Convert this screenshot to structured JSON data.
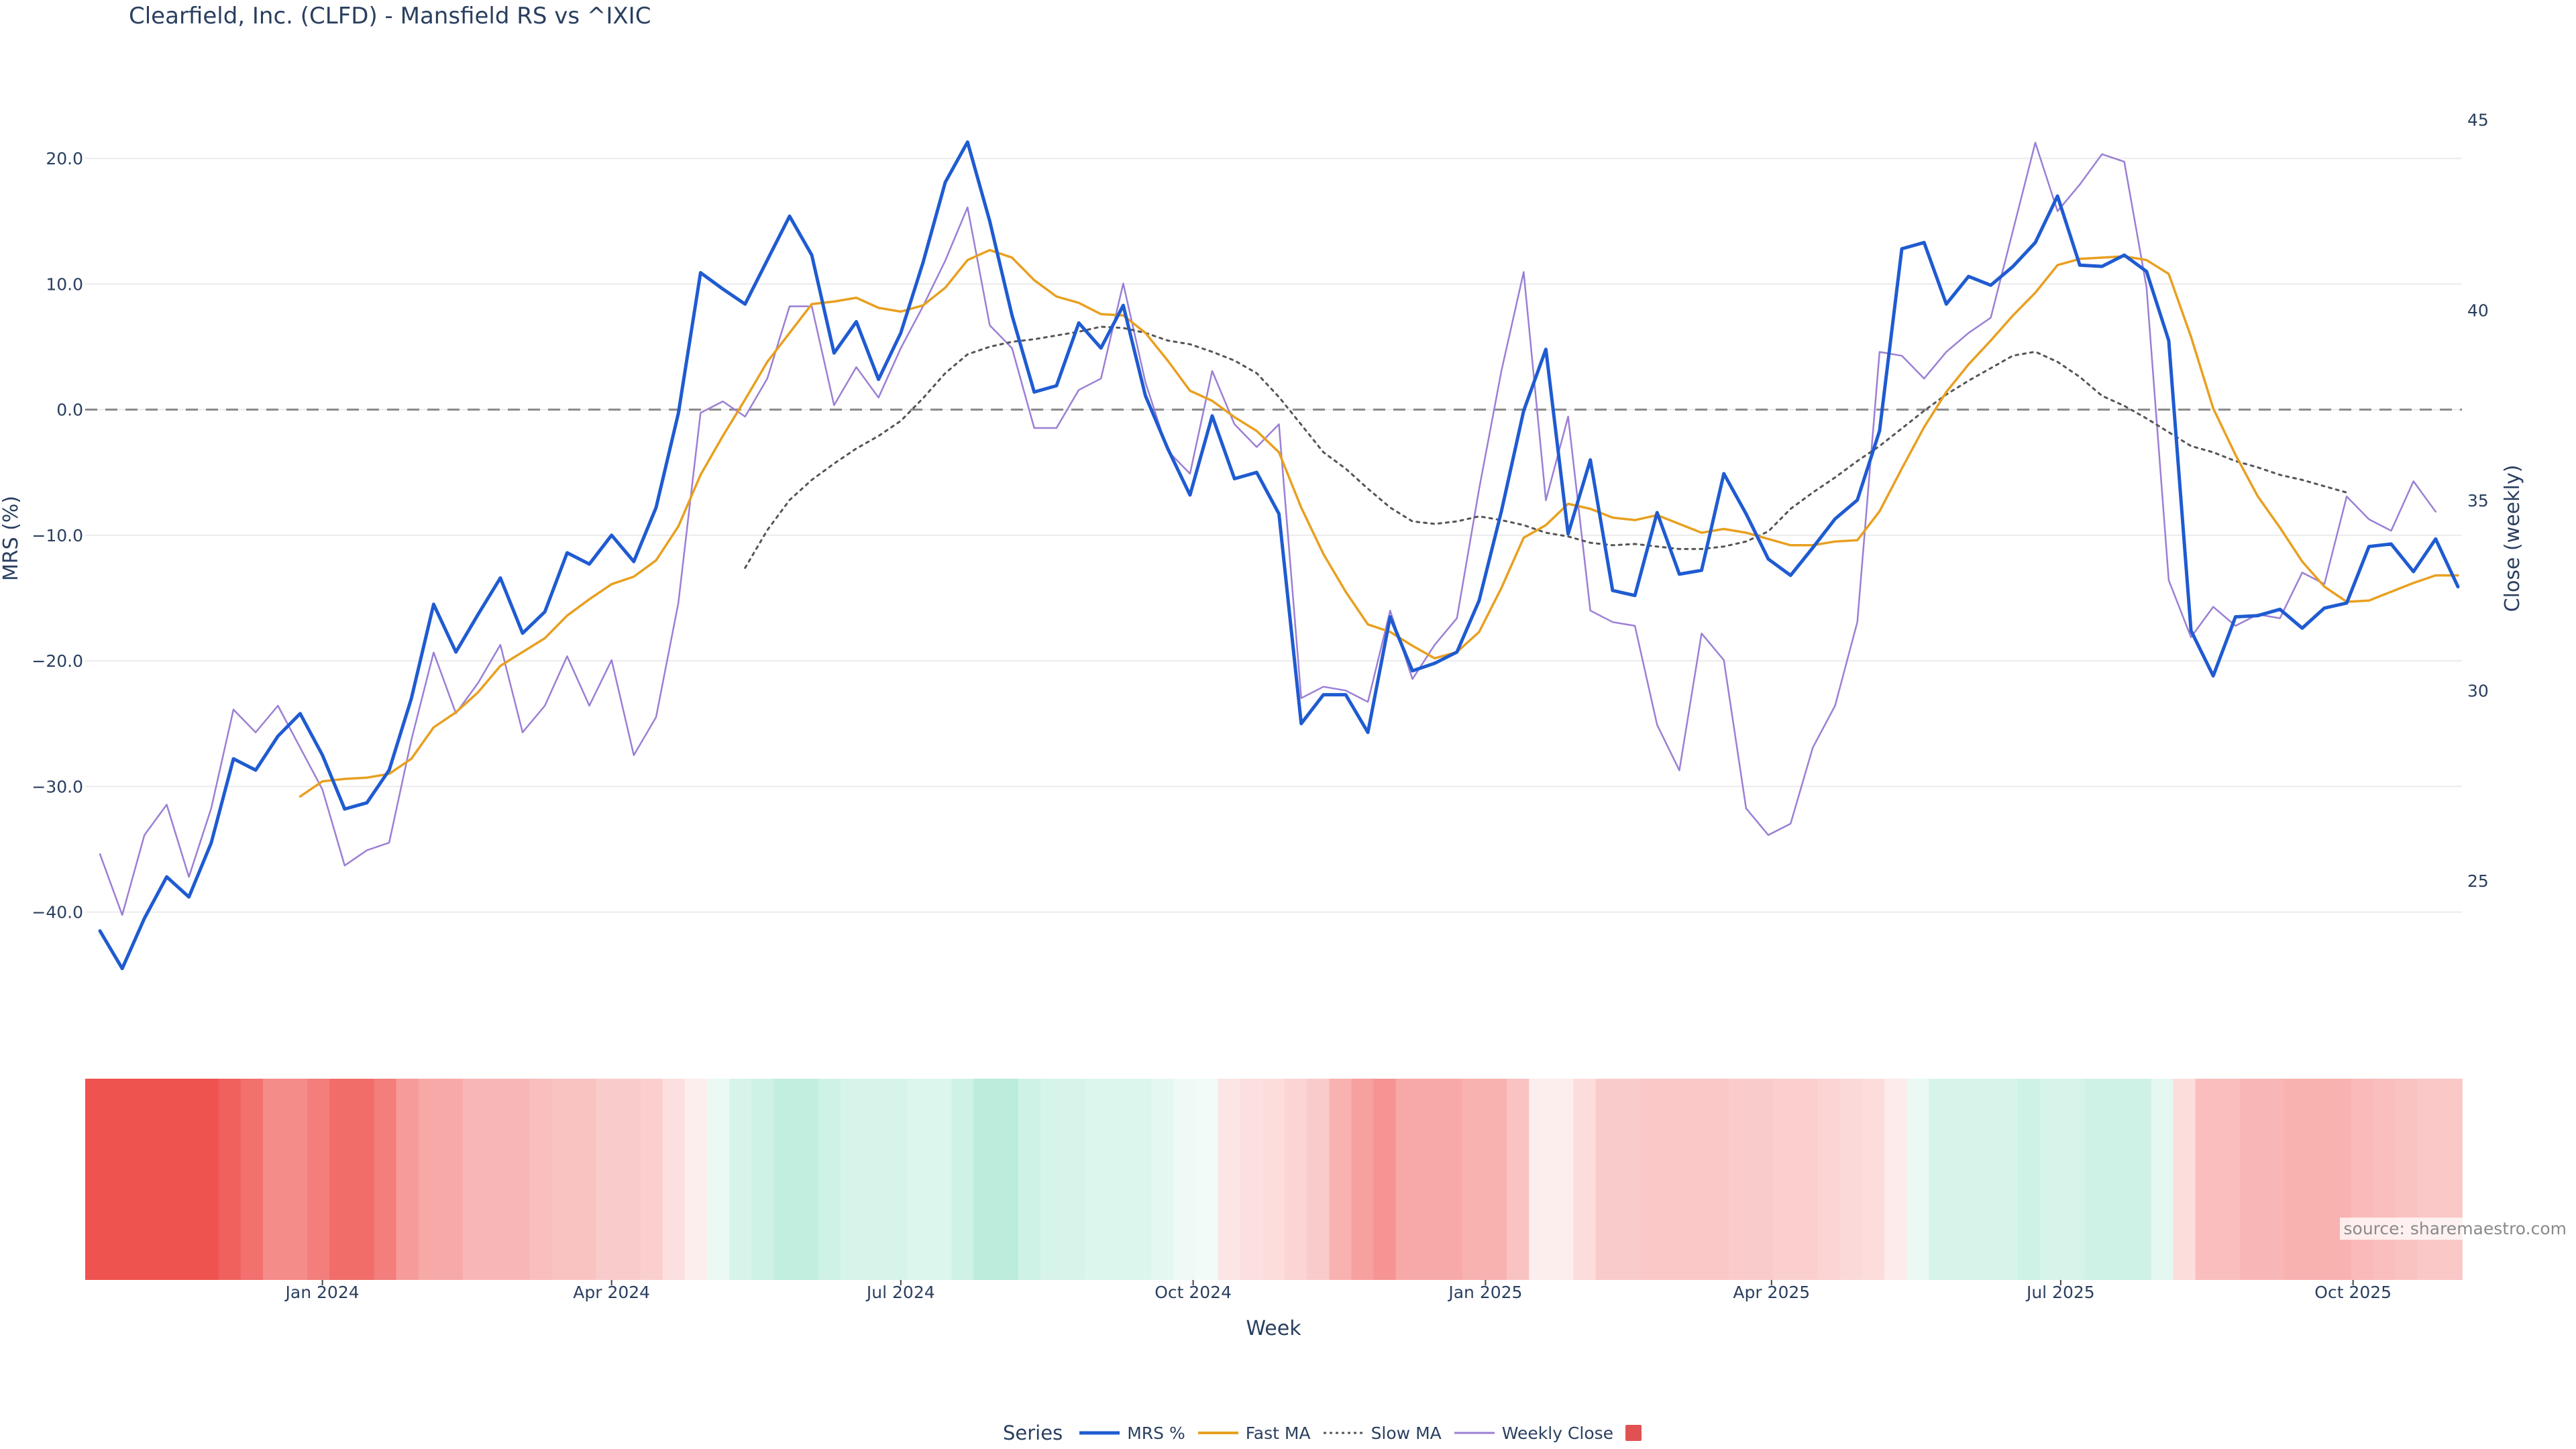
{
  "title": "Clearfield, Inc. (CLFD) - Mansfield RS vs ^IXIC",
  "source": "source: sharemaestro.com",
  "legend": {
    "title": "Series",
    "items": [
      {
        "label": "MRS %",
        "color": "#1f5bd1",
        "style": "solid"
      },
      {
        "label": "Fast MA",
        "color": "#e8a020",
        "style": "solid"
      },
      {
        "label": "Slow MA",
        "color": "#555555",
        "style": "dotted"
      },
      {
        "label": "Weekly Close",
        "color": "#9b7fd4",
        "style": "solid"
      },
      {
        "label": "",
        "color": "#e05252",
        "style": "box"
      }
    ]
  },
  "chart_data": {
    "type": "line",
    "xlabel": "Week",
    "ylabel": "MRS (%)",
    "y2label": "Close (weekly)",
    "ylim": [
      -47.5,
      27
    ],
    "y2lim": [
      21.7,
      46.3
    ],
    "yticks": [
      "20.0",
      "10.0",
      "0.0",
      "−10.0",
      "−20.0",
      "−30.0",
      "−40.0"
    ],
    "y2ticks": [
      "45",
      "40",
      "35",
      "30",
      "25"
    ],
    "xticks": [
      "Jan 2024",
      "Apr 2024",
      "Jul 2024",
      "Oct 2024",
      "Jan 2025",
      "Apr 2025",
      "Jul 2025",
      "Oct 2025"
    ],
    "zero_line": 0,
    "grid": true,
    "series": [
      {
        "name": "MRS %",
        "color": "#1f5bd1",
        "axis": "y",
        "values": [
          -41.5,
          -44.5,
          -40.5,
          -37.2,
          -38.8,
          -34.5,
          -27.8,
          -28.7,
          -26,
          -24.2,
          -27.5,
          -31.8,
          -31.3,
          -28.7,
          -23,
          -15.5,
          -19.3,
          -16.3,
          -13.4,
          -17.8,
          -16.1,
          -11.4,
          -12.3,
          -10,
          -12.1,
          -7.8,
          -0.3,
          10.9,
          9.6,
          8.4,
          11.9,
          15.4,
          12.3,
          4.5,
          7,
          2.4,
          6.1,
          11.7,
          18.1,
          21.3,
          15,
          7.5,
          1.4,
          1.9,
          6.9,
          4.9,
          8.3,
          1.1,
          -3.1,
          -6.8,
          -0.5,
          -5.5,
          -5,
          -8.3,
          -25,
          -22.7,
          -22.7,
          -25.7,
          -16.5,
          -20.8,
          -20.2,
          -19.3,
          -15.2,
          -8.1,
          -0.1,
          4.8,
          -9.9,
          -4,
          -14.4,
          -14.8,
          -8.2,
          -13.1,
          -12.8,
          -5.1,
          -8.3,
          -11.9,
          -13.2,
          -11,
          -8.7,
          -7.2,
          -1.7,
          12.8,
          13.3,
          8.4,
          10.6,
          9.9,
          11.4,
          13.3,
          17,
          11.5,
          11.4,
          12.3,
          11,
          5.5,
          -17.6,
          -21.2,
          -16.5,
          -16.4,
          -15.9,
          -17.4,
          -15.8,
          -15.4,
          -10.9,
          -10.7,
          -12.9,
          -10.3,
          -14.1
        ]
      },
      {
        "name": "Fast MA",
        "color": "#e8a020",
        "axis": "y",
        "values": [
          null,
          null,
          null,
          null,
          null,
          null,
          null,
          null,
          null,
          -30.8,
          -29.6,
          -29.4,
          -29.3,
          -29,
          -27.8,
          -25.3,
          -24.1,
          -22.5,
          -20.4,
          -19.3,
          -18.2,
          -16.4,
          -15.1,
          -13.9,
          -13.3,
          -12,
          -9.3,
          -5.2,
          -2.1,
          0.8,
          3.8,
          6.1,
          8.4,
          8.6,
          8.9,
          8.1,
          7.8,
          8.3,
          9.7,
          11.9,
          12.7,
          12.1,
          10.3,
          9,
          8.5,
          7.6,
          7.5,
          6.1,
          3.9,
          1.5,
          0.7,
          -0.6,
          -1.7,
          -3.4,
          -7.8,
          -11.5,
          -14.5,
          -17.1,
          -17.7,
          -18.8,
          -19.8,
          -19.3,
          -17.7,
          -14.2,
          -10.2,
          -9.2,
          -7.5,
          -7.9,
          -8.6,
          -8.8,
          -8.4,
          -9.1,
          -9.8,
          -9.5,
          -9.8,
          -10.3,
          -10.8,
          -10.8,
          -10.5,
          -10.4,
          -8.1,
          -4.7,
          -1.4,
          1.4,
          3.6,
          5.5,
          7.5,
          9.3,
          11.5,
          12,
          12.1,
          12.2,
          11.9,
          10.8,
          5.8,
          0.1,
          -3.6,
          -6.9,
          -9.4,
          -12.1,
          -14.1,
          -15.3,
          -15.2,
          -14.5,
          -13.8,
          -13.2,
          -13.2
        ]
      },
      {
        "name": "Slow MA",
        "color": "#555555",
        "axis": "y",
        "dash": true,
        "values": [
          null,
          null,
          null,
          null,
          null,
          null,
          null,
          null,
          null,
          null,
          null,
          null,
          null,
          null,
          null,
          null,
          null,
          null,
          null,
          null,
          null,
          null,
          null,
          null,
          null,
          null,
          null,
          null,
          null,
          -12.6,
          -9.6,
          -7.2,
          -5.6,
          -4.3,
          -3.1,
          -2.1,
          -0.9,
          0.9,
          2.9,
          4.4,
          5,
          5.4,
          5.6,
          5.9,
          6.2,
          6.6,
          6.5,
          6.1,
          5.5,
          5.2,
          4.6,
          3.9,
          2.9,
          1,
          -1.2,
          -3.4,
          -4.7,
          -6.3,
          -7.8,
          -8.9,
          -9.1,
          -8.9,
          -8.5,
          -8.8,
          -9.2,
          -9.8,
          -10.1,
          -10.6,
          -10.8,
          -10.7,
          -10.9,
          -11.1,
          -11.1,
          -10.9,
          -10.5,
          -9.7,
          -7.9,
          -6.6,
          -5.4,
          -4.1,
          -2.9,
          -1.5,
          -0.1,
          1.2,
          2.3,
          3.3,
          4.3,
          4.6,
          3.8,
          2.6,
          1.1,
          0.3,
          -0.7,
          -1.8,
          -2.9,
          -3.4,
          -4.1,
          -4.6,
          -5.2,
          -5.6,
          -6.1,
          -6.6
        ]
      },
      {
        "name": "Weekly Close",
        "color": "#9b7fd4",
        "axis": "y2",
        "values": [
          25.7,
          24.1,
          26.2,
          27,
          25.1,
          26.9,
          29.5,
          28.9,
          29.6,
          28.5,
          27.4,
          25.4,
          25.8,
          26,
          28.7,
          31,
          29.4,
          30.2,
          31.2,
          28.9,
          29.6,
          30.9,
          29.6,
          30.8,
          28.3,
          29.3,
          32.3,
          37.3,
          37.6,
          37.2,
          38.2,
          40.1,
          40.1,
          37.5,
          38.5,
          37.7,
          39,
          40.1,
          41.3,
          42.7,
          39.6,
          39,
          36.9,
          36.9,
          37.9,
          38.2,
          40.7,
          38.1,
          36.3,
          35.7,
          38.4,
          37,
          36.4,
          37,
          29.8,
          30.1,
          30,
          29.7,
          32.1,
          30.3,
          31.2,
          31.9,
          35.3,
          38.4,
          41,
          35,
          37.2,
          32.1,
          31.8,
          31.7,
          29.1,
          27.9,
          31.5,
          30.8,
          26.9,
          26.2,
          26.5,
          28.5,
          29.6,
          31.8,
          38.9,
          38.8,
          38.2,
          38.9,
          39.4,
          39.8,
          42.1,
          44.4,
          42.6,
          43.3,
          44.1,
          43.9,
          40.6,
          32.9,
          31.4,
          32.2,
          31.7,
          32,
          31.9,
          33.1,
          32.8,
          35.1,
          34.5,
          34.2,
          35.5,
          34.7
        ]
      }
    ],
    "heatmap": {
      "type": "heatmap",
      "values": [
        -1,
        -1,
        -1,
        -1,
        -1,
        -1,
        -0.92,
        -0.83,
        -0.67,
        -0.67,
        -0.75,
        -0.85,
        -0.85,
        -0.75,
        -0.58,
        -0.5,
        -0.5,
        -0.42,
        -0.42,
        -0.42,
        -0.38,
        -0.35,
        -0.35,
        -0.3,
        -0.3,
        -0.28,
        -0.18,
        -0.1,
        0.15,
        0.3,
        0.35,
        0.45,
        0.45,
        0.35,
        0.3,
        0.3,
        0.3,
        0.25,
        0.25,
        0.35,
        0.5,
        0.5,
        0.35,
        0.3,
        0.3,
        0.25,
        0.25,
        0.25,
        0.2,
        0.12,
        0.1,
        -0.15,
        -0.18,
        -0.2,
        -0.25,
        -0.3,
        -0.45,
        -0.55,
        -0.62,
        -0.5,
        -0.5,
        -0.5,
        -0.45,
        -0.45,
        -0.35,
        -0.1,
        -0.1,
        -0.2,
        -0.3,
        -0.3,
        -0.32,
        -0.32,
        -0.32,
        -0.32,
        -0.3,
        -0.3,
        -0.28,
        -0.28,
        -0.25,
        -0.22,
        -0.2,
        -0.12,
        0.15,
        0.3,
        0.3,
        0.3,
        0.3,
        0.35,
        0.3,
        0.3,
        0.35,
        0.35,
        0.35,
        0.2,
        -0.2,
        -0.38,
        -0.38,
        -0.42,
        -0.42,
        -0.45,
        -0.45,
        -0.45,
        -0.4,
        -0.38,
        -0.35,
        -0.32,
        -0.32
      ]
    }
  }
}
